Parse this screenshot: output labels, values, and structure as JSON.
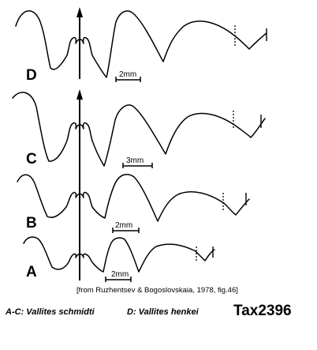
{
  "figure": {
    "specimens": [
      {
        "letter": "D",
        "scale": "2mm"
      },
      {
        "letter": "C",
        "scale": "3mm"
      },
      {
        "letter": "B",
        "scale": "2mm"
      },
      {
        "letter": "A",
        "scale": "2mm"
      }
    ],
    "source": "[from Ruzhentsev & Bogoslovskaia, 1978, fig.46]",
    "caption_ac": "A-C: Vallites schmidti",
    "caption_d": "D: Vallites henkei",
    "tax_id": "Tax2396"
  }
}
